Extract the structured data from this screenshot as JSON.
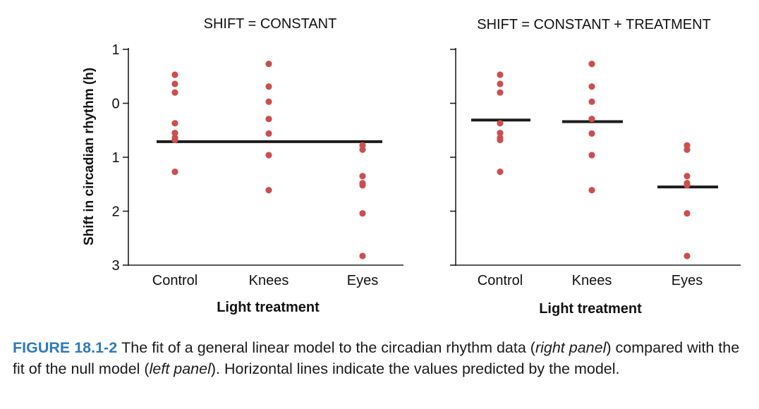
{
  "chart_data": [
    {
      "type": "scatter",
      "title": "SHIFT = CONSTANT",
      "xlabel": "Light treatment",
      "ylabel": "Shift in circadian rhythm (h)",
      "categories": [
        "Control",
        "Knees",
        "Eyes"
      ],
      "y_tick_labels": [
        "1",
        "0",
        "1",
        "2",
        "3"
      ],
      "y_ticks": [
        1,
        0,
        -1,
        -2,
        -3
      ],
      "ylim": [
        -3,
        1
      ],
      "points": {
        "Control": [
          0.53,
          0.36,
          0.2,
          -0.37,
          -0.55,
          -0.64,
          -0.68,
          -1.27
        ],
        "Knees": [
          0.73,
          0.31,
          0.03,
          -0.29,
          -0.56,
          -0.96,
          -1.61
        ],
        "Eyes": [
          -0.78,
          -0.86,
          -1.35,
          -1.48,
          -1.52,
          -2.04,
          -2.83
        ]
      },
      "fitted": {
        "Control": -0.71,
        "Knees": -0.71,
        "Eyes": -0.71
      }
    },
    {
      "type": "scatter",
      "title": "SHIFT = CONSTANT + TREATMENT",
      "xlabel": "Light treatment",
      "categories": [
        "Control",
        "Knees",
        "Eyes"
      ],
      "y_ticks": [
        1,
        0,
        -1,
        -2,
        -3
      ],
      "ylim": [
        -3,
        1
      ],
      "points": {
        "Control": [
          0.53,
          0.36,
          0.2,
          -0.37,
          -0.55,
          -0.64,
          -0.68,
          -1.27
        ],
        "Knees": [
          0.73,
          0.31,
          0.03,
          -0.29,
          -0.56,
          -0.96,
          -1.61
        ],
        "Eyes": [
          -0.78,
          -0.86,
          -1.35,
          -1.48,
          -1.52,
          -2.04,
          -2.83
        ]
      },
      "fitted": {
        "Control": -0.31,
        "Knees": -0.34,
        "Eyes": -1.55
      }
    }
  ],
  "colors": {
    "point": "#cc4f50",
    "fit_line": "#1c1c1c",
    "caption_label": "#2f7ab9"
  },
  "caption": {
    "label": "FIGURE 18.1-2",
    "part1": "The fit of a general linear model to the circadian rhythm data (",
    "right_panel": "right panel",
    "part2": ") compared with the fit of the null model (",
    "left_panel": "left panel",
    "part3": "). Horizontal lines indicate the values predicted by the model."
  }
}
